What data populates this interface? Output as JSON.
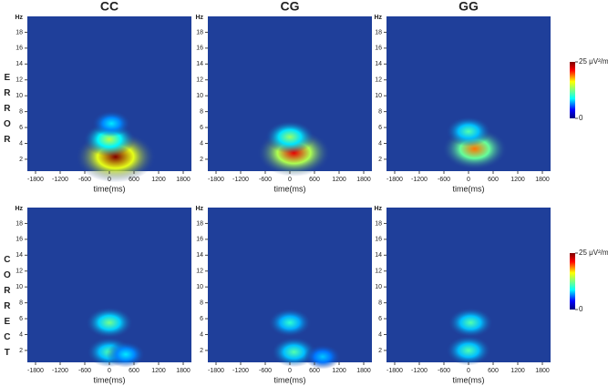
{
  "rows": [
    "ERROR",
    "CORRECT"
  ],
  "chart_data": [
    {
      "type": "heatmap",
      "title": "CC",
      "xlabel": "time(ms)",
      "ylabel": "Hz",
      "xlim": [
        -2000,
        2000
      ],
      "xticks": [
        -1800,
        -1200,
        -600,
        0,
        600,
        1200,
        1800
      ],
      "ylim": [
        0.5,
        20
      ],
      "yticks": [
        2,
        4,
        6,
        8,
        10,
        12,
        14,
        16,
        18
      ],
      "peaks": [
        {
          "x": 150,
          "y": 2.3,
          "value": 25
        },
        {
          "x": 0,
          "y": 4.5,
          "value": 12
        },
        {
          "x": 50,
          "y": 6.5,
          "value": 6
        }
      ]
    },
    {
      "type": "heatmap",
      "title": "CG",
      "xlabel": "time(ms)",
      "ylabel": "Hz",
      "xlim": [
        -2000,
        2000
      ],
      "xticks": [
        -1800,
        -1200,
        -600,
        0,
        600,
        1200,
        1800
      ],
      "ylim": [
        0.5,
        20
      ],
      "yticks": [
        2,
        4,
        6,
        8,
        10,
        12,
        14,
        16,
        18
      ],
      "peaks": [
        {
          "x": 100,
          "y": 2.8,
          "value": 22
        },
        {
          "x": 0,
          "y": 4.8,
          "value": 11
        }
      ]
    },
    {
      "type": "heatmap",
      "title": "GG",
      "xlabel": "time(ms)",
      "ylabel": "Hz",
      "xlim": [
        -2000,
        2000
      ],
      "xticks": [
        -1800,
        -1200,
        -600,
        0,
        600,
        1200,
        1800
      ],
      "ylim": [
        0.5,
        20
      ],
      "yticks": [
        2,
        4,
        6,
        8,
        10,
        12,
        14,
        16,
        18
      ],
      "peaks": [
        {
          "x": 150,
          "y": 3.3,
          "value": 18
        },
        {
          "x": 0,
          "y": 5.5,
          "value": 9
        }
      ],
      "colorbar": {
        "ticks": [
          0,
          {
            "value": 25,
            "label": "25 μV²/m"
          }
        ]
      }
    },
    {
      "type": "heatmap",
      "xlabel": "time(ms)",
      "ylabel": "Hz",
      "xlim": [
        -2000,
        2000
      ],
      "xticks": [
        -1800,
        -1200,
        -600,
        0,
        600,
        1200,
        1800
      ],
      "ylim": [
        0.5,
        20
      ],
      "yticks": [
        2,
        4,
        6,
        8,
        10,
        12,
        14,
        16,
        18
      ],
      "peaks": [
        {
          "x": 0,
          "y": 5.5,
          "value": 10
        },
        {
          "x": 0,
          "y": 1.8,
          "value": 9
        },
        {
          "x": 400,
          "y": 1.5,
          "value": 6
        }
      ]
    },
    {
      "type": "heatmap",
      "xlabel": "time(ms)",
      "ylabel": "Hz",
      "xlim": [
        -2000,
        2000
      ],
      "xticks": [
        -1800,
        -1200,
        -600,
        0,
        600,
        1200,
        1800
      ],
      "ylim": [
        0.5,
        20
      ],
      "yticks": [
        2,
        4,
        6,
        8,
        10,
        12,
        14,
        16,
        18
      ],
      "peaks": [
        {
          "x": 0,
          "y": 5.5,
          "value": 8
        },
        {
          "x": 100,
          "y": 1.8,
          "value": 9
        },
        {
          "x": 800,
          "y": 1.2,
          "value": 5
        }
      ]
    },
    {
      "type": "heatmap",
      "xlabel": "time(ms)",
      "ylabel": "Hz",
      "xlim": [
        -2000,
        2000
      ],
      "xticks": [
        -1800,
        -1200,
        -600,
        0,
        600,
        1200,
        1800
      ],
      "ylim": [
        0.5,
        20
      ],
      "yticks": [
        2,
        4,
        6,
        8,
        10,
        12,
        14,
        16,
        18
      ],
      "peaks": [
        {
          "x": 50,
          "y": 5.5,
          "value": 9
        },
        {
          "x": 0,
          "y": 2,
          "value": 9
        }
      ],
      "colorbar": {
        "ticks": [
          0,
          {
            "value": 25,
            "label": "25 μV²/m"
          }
        ]
      }
    }
  ]
}
